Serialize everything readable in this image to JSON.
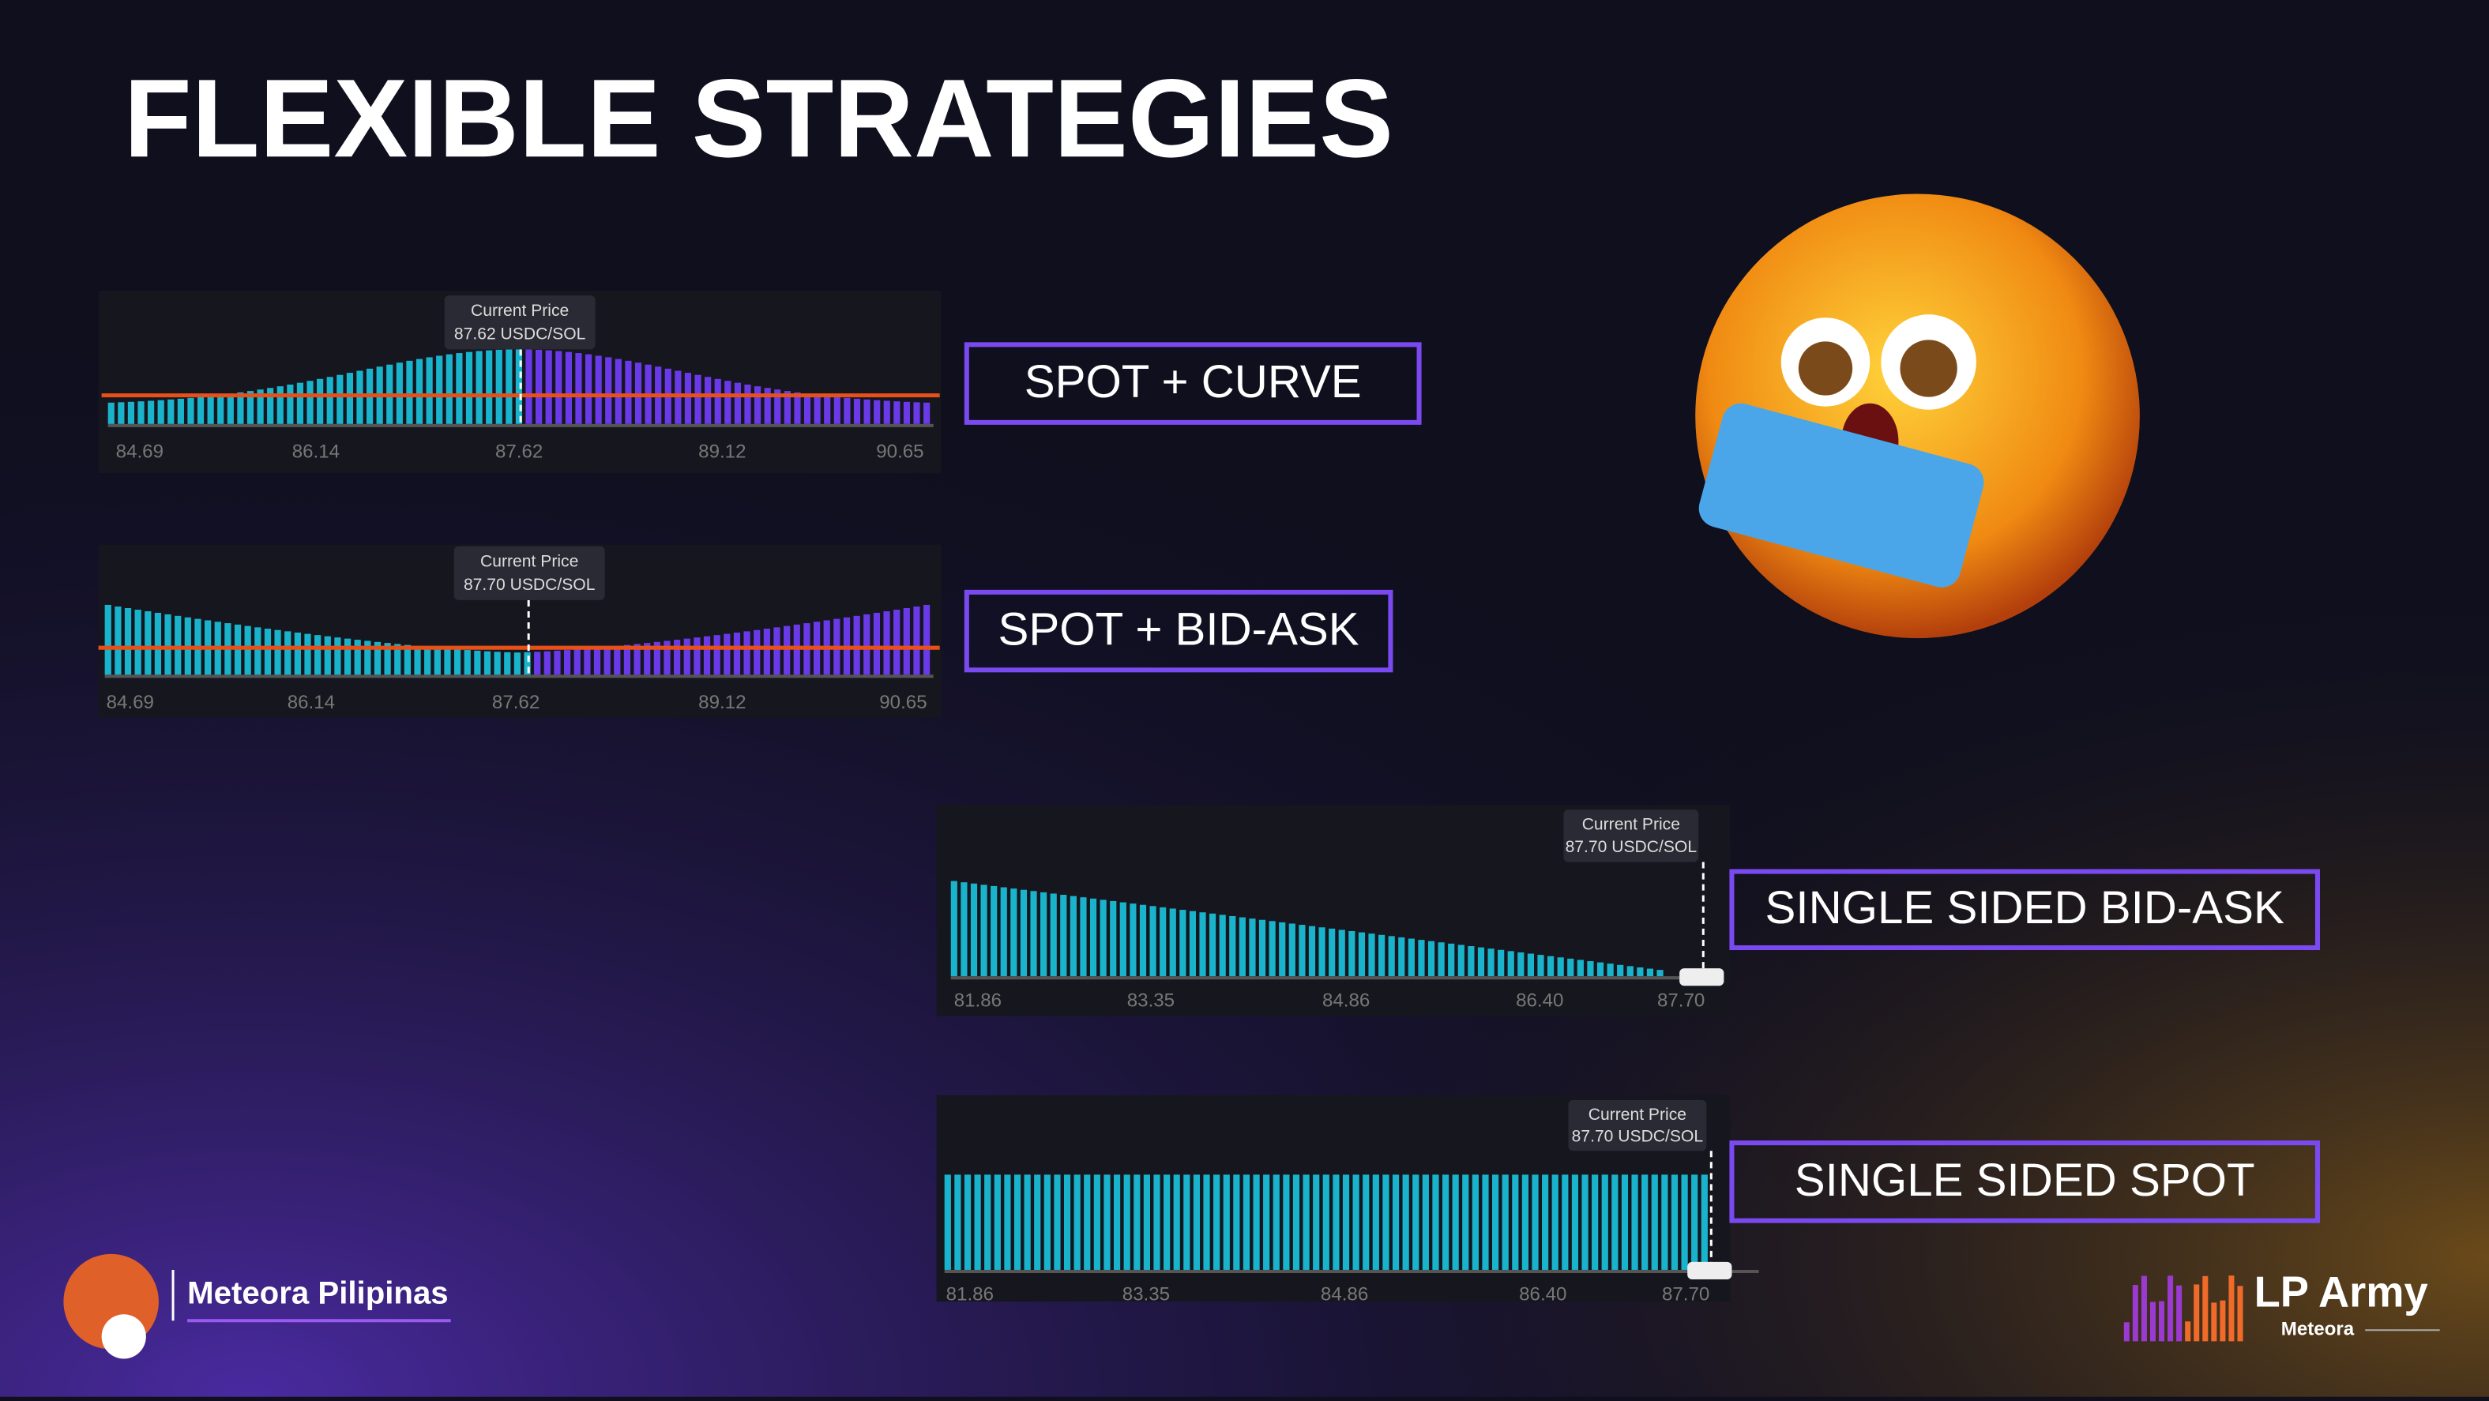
{
  "title": "FLEXIBLE STRATEGIES",
  "panels": [
    {
      "tooltip": [
        "Current Price",
        "87.62 USDC/SOL"
      ],
      "ticks": [
        "84.69",
        "86.14",
        "87.62",
        "89.12",
        "90.65"
      ],
      "label": "SPOT + CURVE"
    },
    {
      "tooltip": [
        "Current Price",
        "87.70 USDC/SOL"
      ],
      "ticks": [
        "84.69",
        "86.14",
        "87.62",
        "89.12",
        "90.65"
      ],
      "label": "SPOT + BID-ASK"
    },
    {
      "tooltip": [
        "Current Price",
        "87.70 USDC/SOL"
      ],
      "ticks": [
        "81.86",
        "83.35",
        "84.86",
        "86.40",
        "87.70"
      ],
      "label": "SINGLE SIDED BID-ASK"
    },
    {
      "tooltip": [
        "Current Price",
        "87.70 USDC/SOL"
      ],
      "ticks": [
        "81.86",
        "83.35",
        "84.86",
        "86.40",
        "87.70"
      ],
      "label": "SINGLE SIDED SPOT"
    }
  ],
  "brand": {
    "left": "Meteora Pilipinas",
    "right": "LP Army",
    "right_sub": "Meteora"
  }
}
